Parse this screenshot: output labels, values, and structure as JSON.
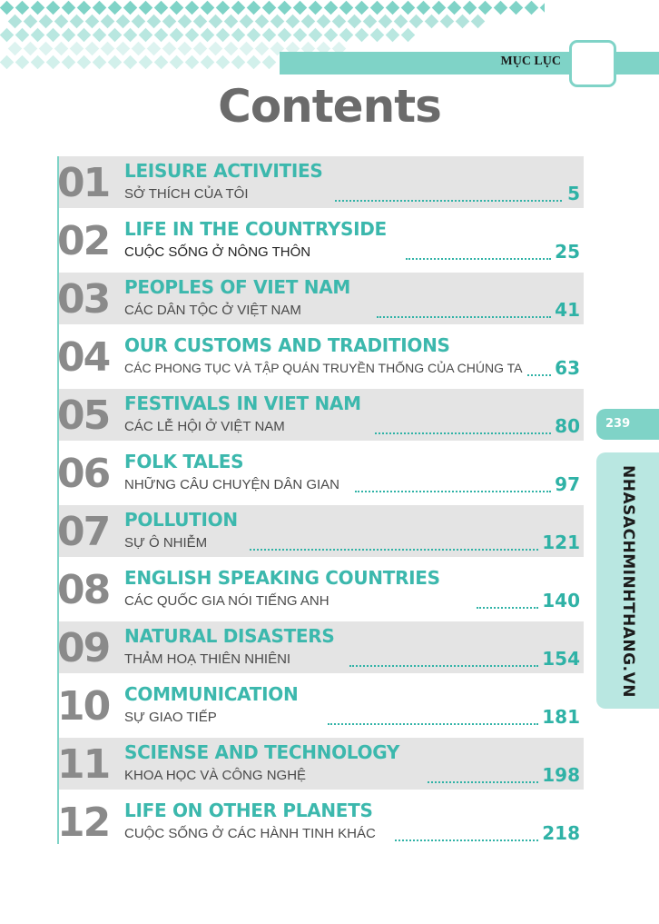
{
  "header": {
    "label": "MỤC LỤC"
  },
  "title": "Contents",
  "side": {
    "page_number": "239",
    "site": "NHASACHMINHTHANG.VN"
  },
  "colors": {
    "accent": "#7fd3c7",
    "teal_text": "#3cb8ad",
    "number_gray": "#8a8a8a",
    "shade": "#e4e4e4"
  },
  "units": [
    {
      "num": "01",
      "en": "LEISURE ACTIVITIES",
      "vn": "SỞ THÍCH CỦA TÔI",
      "page": "5"
    },
    {
      "num": "02",
      "en": "LIFE IN THE COUNTRYSIDE",
      "vn": "CUỘC SỐNG Ở NÔNG THÔN",
      "page": "25"
    },
    {
      "num": "03",
      "en": "PEOPLES OF VIET NAM",
      "vn": "CÁC DÂN TỘC Ở VIỆT NAM",
      "page": "41"
    },
    {
      "num": "04",
      "en": "OUR CUSTOMS AND TRADITIONS",
      "vn": "CÁC PHONG TỤC VÀ TẬP QUÁN TRUYỀN THỐNG CỦA CHÚNG TA",
      "page": "63"
    },
    {
      "num": "05",
      "en": "FESTIVALS IN VIET NAM",
      "vn": "CÁC LỄ HỘI Ở VIỆT NAM",
      "page": "80"
    },
    {
      "num": "06",
      "en": "FOLK TALES",
      "vn": "NHỮNG CÂU CHUYỆN DÂN GIAN",
      "page": "97"
    },
    {
      "num": "07",
      "en": "POLLUTION",
      "vn": "SỰ Ô NHIỄM",
      "page": "121"
    },
    {
      "num": "08",
      "en": "ENGLISH SPEAKING COUNTRIES",
      "vn": "CÁC QUỐC GIA NÓI TIẾNG ANH",
      "page": "140"
    },
    {
      "num": "09",
      "en": "NATURAL DISASTERS",
      "vn": "THẢM HOẠ THIÊN NHIÊNI",
      "page": "154"
    },
    {
      "num": "10",
      "en": "COMMUNICATION",
      "vn": "SỰ GIAO TIẾP",
      "page": "181"
    },
    {
      "num": "11",
      "en": "SCIENSE AND TECHNOLOGY",
      "vn": "KHOA HỌC VÀ CÔNG NGHỆ",
      "page": "198"
    },
    {
      "num": "12",
      "en": "LIFE ON OTHER PLANETS",
      "vn": "CUỘC SỐNG Ở CÁC HÀNH TINH KHÁC",
      "page": "218"
    }
  ]
}
